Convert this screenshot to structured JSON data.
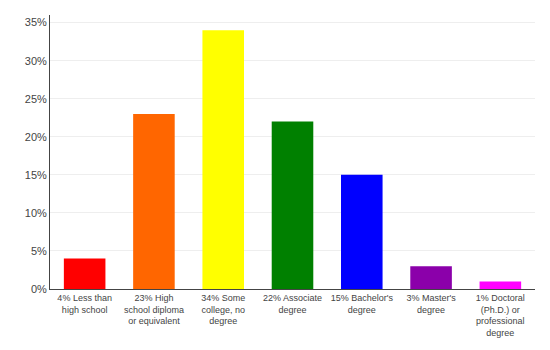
{
  "chart_data": {
    "type": "bar",
    "categories": [
      "4% Less than\nhigh school",
      "23% High\nschool diploma\nor equivalent",
      "34% Some\ncollege, no\ndegree",
      "22% Associate\ndegree",
      "15% Bachelor's\ndegree",
      "3% Master's\ndegree",
      "1% Doctoral\n(Ph.D.) or\nprofessional\ndegree"
    ],
    "values": [
      4,
      23,
      34,
      22,
      15,
      3,
      1
    ],
    "colors": [
      "#ff0000",
      "#ff6600",
      "#ffff00",
      "#008000",
      "#0000ff",
      "#8b00aa",
      "#ff00ff"
    ],
    "ylim": [
      0,
      36
    ],
    "yticks": [
      {
        "value": 0,
        "label": "0%"
      },
      {
        "value": 5,
        "label": "5%"
      },
      {
        "value": 10,
        "label": "10%"
      },
      {
        "value": 15,
        "label": "15%"
      },
      {
        "value": 20,
        "label": "20%"
      },
      {
        "value": 25,
        "label": "25%"
      },
      {
        "value": 30,
        "label": "30%"
      },
      {
        "value": 35,
        "label": "35%"
      }
    ],
    "grid": true
  }
}
